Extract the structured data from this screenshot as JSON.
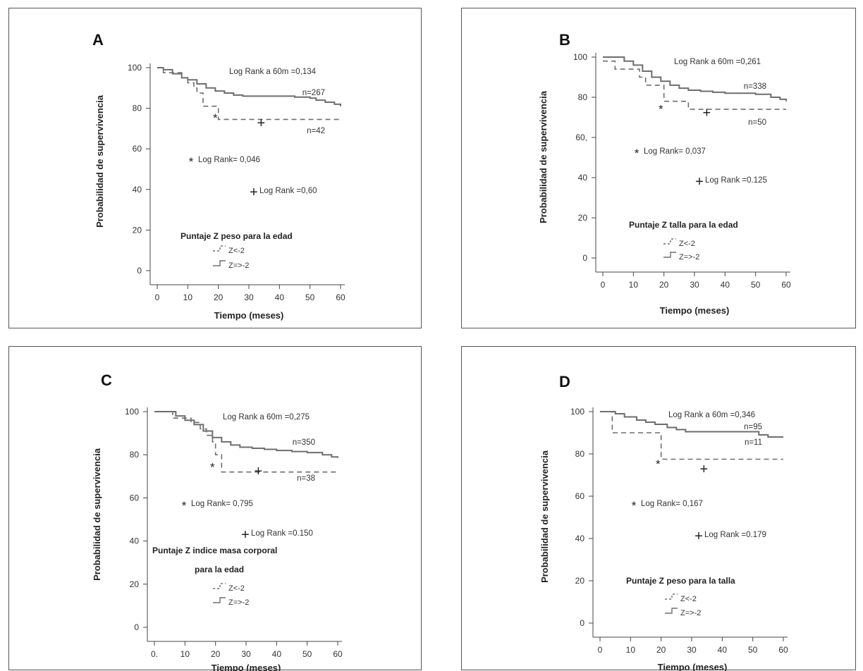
{
  "chart_data": [
    {
      "type": "line",
      "panel": "A",
      "xlabel": "Tiempo (meses)",
      "ylabel": "Probabilidad de supervivencia",
      "xlim": [
        0,
        60
      ],
      "ylim": [
        0,
        100
      ],
      "xticks": [
        "0",
        "10",
        "20",
        "30",
        "40",
        "50",
        "60"
      ],
      "yticks": [
        "0",
        "20",
        "40",
        "60",
        "80",
        "100"
      ],
      "legend_title": [
        "Puntaje Z peso para la edad"
      ],
      "legend": [
        "Z<-2",
        "Z=>-2"
      ],
      "annotations": {
        "log_rank_60": "Log Rank a 60m =0,134",
        "log_rank_star": "Log Rank= 0,046",
        "log_rank_cross": "Log Rank =0,60",
        "n_solid": "n=267",
        "n_dashed": "n=42"
      },
      "series": [
        {
          "name": "Z=>-2",
          "style": "solid",
          "x": [
            0,
            2,
            5,
            8,
            10,
            13,
            16,
            19,
            22,
            25,
            28,
            31,
            35,
            40,
            45,
            50,
            52,
            55,
            58,
            60
          ],
          "y": [
            100,
            99,
            97,
            95,
            94,
            92,
            90,
            88.5,
            87.5,
            86.5,
            86,
            86,
            86,
            86,
            85.5,
            85,
            84,
            83,
            82,
            81
          ]
        },
        {
          "name": "Z<-2",
          "style": "dashed",
          "x": [
            0,
            2,
            5,
            8,
            10,
            12,
            13,
            15,
            17,
            19,
            20,
            22,
            60
          ],
          "y": [
            100,
            97.5,
            97.5,
            95,
            92.5,
            90,
            87.5,
            81,
            81,
            81,
            74.5,
            74.5,
            74.5
          ]
        }
      ],
      "markers": {
        "star": {
          "x": 19,
          "y": 76
        },
        "cross": {
          "x": 34,
          "y": 73
        }
      }
    },
    {
      "type": "line",
      "panel": "B",
      "xlabel": "Tiempo (meses)",
      "ylabel": "Probabilidad de supervivencia",
      "xlim": [
        0,
        60
      ],
      "ylim": [
        0,
        100
      ],
      "xticks": [
        "0",
        "10",
        "20",
        "30",
        "40",
        "50",
        "60"
      ],
      "yticks": [
        "0",
        "20",
        "40",
        "60",
        "80",
        "100"
      ],
      "ytick_labels_display": [
        "0",
        "20",
        "40",
        "60,",
        "80",
        "100"
      ],
      "legend_title": [
        "Puntaje Z talla para la edad"
      ],
      "legend": [
        "Z<-2",
        "Z=>-2"
      ],
      "annotations": {
        "log_rank_60": "Log Rank a 60m =0,261",
        "log_rank_star": "Log Rank= 0,037",
        "log_rank_cross": "Log Rank =0.125",
        "n_solid": "n=338",
        "n_dashed": "n=50"
      },
      "series": [
        {
          "name": "Z=>-2",
          "style": "solid",
          "x": [
            0,
            4,
            7,
            10,
            13,
            16,
            19,
            22,
            25,
            28,
            32,
            36,
            40,
            45,
            50,
            55,
            58,
            60
          ],
          "y": [
            100,
            100,
            98,
            96,
            93,
            90,
            88,
            86,
            84.5,
            83.5,
            83,
            82.5,
            82,
            82,
            81.5,
            80,
            79,
            78
          ]
        },
        {
          "name": "Z<-2",
          "style": "dashed",
          "x": [
            0,
            2,
            4,
            10,
            12,
            14,
            18,
            20,
            24,
            28,
            60
          ],
          "y": [
            98,
            98,
            94,
            94,
            90,
            86,
            86,
            78,
            78,
            74,
            74
          ]
        }
      ],
      "markers": {
        "star": {
          "x": 19,
          "y": 75
        },
        "cross": {
          "x": 34,
          "y": 72.5
        }
      }
    },
    {
      "type": "line",
      "panel": "C",
      "xlabel": "Tiempo (meses)",
      "ylabel": "Probabilidad de supervivencia",
      "xlim": [
        0,
        60
      ],
      "ylim": [
        0,
        100
      ],
      "xticks": [
        "0",
        "10",
        "20",
        "30",
        "40",
        "50",
        "60"
      ],
      "yticks": [
        "0",
        "20",
        "40",
        "60",
        "80",
        "100"
      ],
      "xtick_labels_display": [
        "0.",
        "10",
        "20",
        "30",
        "40",
        "50",
        "60"
      ],
      "legend_title": [
        "Puntaje Z indice masa corporal",
        "para la edad"
      ],
      "legend": [
        "Z<-2",
        "Z=>-2"
      ],
      "annotations": {
        "log_rank_60": "Log Rank a 60m =0,275",
        "log_rank_star": "Log Rank= 0,795",
        "log_rank_cross": "Log Rank =0.150",
        "n_solid": "n=350",
        "n_dashed": "n=38"
      },
      "series": [
        {
          "name": "Z=>-2",
          "style": "solid",
          "x": [
            0,
            4,
            7,
            10,
            13,
            16,
            19,
            22,
            25,
            28,
            32,
            36,
            40,
            45,
            50,
            55,
            58,
            60
          ],
          "y": [
            100,
            100,
            98,
            96,
            94,
            91,
            88,
            86,
            84.5,
            83.5,
            83,
            82.5,
            82,
            81.5,
            81,
            80,
            79,
            78.5
          ]
        },
        {
          "name": "Z<-2",
          "style": "dashed",
          "x": [
            0,
            4,
            6,
            10,
            12,
            15,
            17,
            19,
            20,
            22,
            60
          ],
          "y": [
            100,
            100,
            97,
            97,
            95,
            92,
            89,
            86,
            80,
            72,
            72
          ]
        }
      ],
      "markers": {
        "star": {
          "x": 19,
          "y": 75
        },
        "cross": {
          "x": 34,
          "y": 72.5
        }
      }
    },
    {
      "type": "line",
      "panel": "D",
      "xlabel": "Tiempo (meses)",
      "ylabel": "Probabilidad de supervivencia",
      "xlim": [
        0,
        60
      ],
      "ylim": [
        0,
        100
      ],
      "xticks": [
        "0",
        "10",
        "20",
        "30",
        "40",
        "50",
        "60"
      ],
      "yticks": [
        "0",
        "20",
        "40",
        "60",
        "80",
        "100"
      ],
      "legend_title": [
        "Puntaje Z peso para la talla"
      ],
      "legend": [
        "Z<-2",
        "Z=>-2"
      ],
      "annotations": {
        "log_rank_60": "Log Rank a 60m =0,346",
        "log_rank_star": "Log Rank= 0,167",
        "log_rank_cross": "Log Rank =0.179",
        "n_solid": "n=95",
        "n_dashed": "n=11"
      },
      "series": [
        {
          "name": "Z=>-2",
          "style": "solid",
          "x": [
            0,
            5,
            8,
            12,
            15,
            18,
            22,
            25,
            28,
            35,
            45,
            50,
            52,
            55,
            60
          ],
          "y": [
            100,
            99,
            97.5,
            96,
            95,
            94,
            92.5,
            91.5,
            90.5,
            90.5,
            90.5,
            90.5,
            89,
            88,
            88
          ]
        },
        {
          "name": "Z<-2",
          "style": "dashed",
          "x": [
            0,
            3,
            4,
            19,
            20,
            60
          ],
          "y": [
            100,
            100,
            90,
            90,
            77.5,
            77.5
          ]
        }
      ],
      "markers": {
        "star": {
          "x": 19,
          "y": 76
        },
        "cross": {
          "x": 34,
          "y": 73
        }
      }
    }
  ]
}
